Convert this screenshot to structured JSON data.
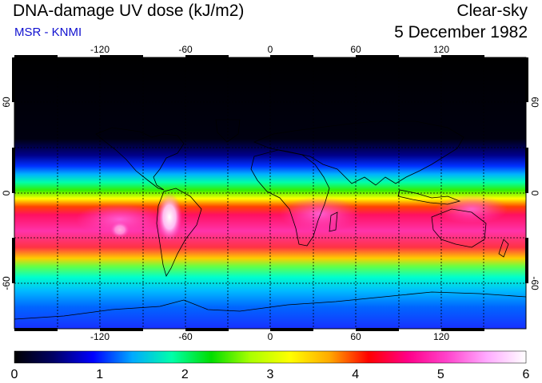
{
  "header": {
    "title": "DNA-damage UV dose (kJ/m2)",
    "source": "MSR - KNMI",
    "condition": "Clear-sky",
    "date": "5 December 1982"
  },
  "map": {
    "lon_ticks": [
      "-120",
      "-60",
      "0",
      "60",
      "120"
    ],
    "lat_ticks_left": [
      "60",
      "0",
      "-60"
    ],
    "lat_ticks_right": [
      "60",
      "0",
      "-60"
    ]
  },
  "colorbar": {
    "min": 0,
    "max": 6,
    "labels": [
      "0",
      "1",
      "2",
      "3",
      "4",
      "5",
      "6"
    ],
    "stops": [
      "#000000",
      "#000066",
      "#0000ff",
      "#00aaff",
      "#00ffaa",
      "#00dd00",
      "#aaff00",
      "#ffff00",
      "#ffaa00",
      "#ff0000",
      "#ff0088",
      "#ff44cc",
      "#ffaaff",
      "#ffffff"
    ]
  },
  "colors": {
    "subtitle": "#1010d0"
  }
}
